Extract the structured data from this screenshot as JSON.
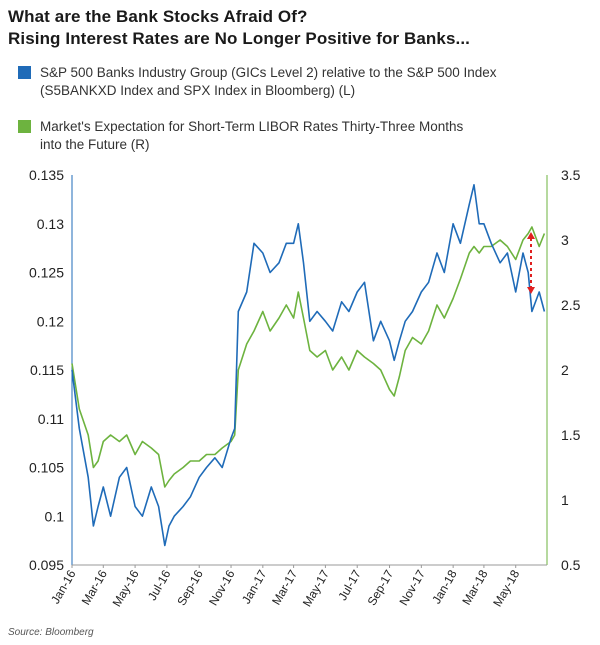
{
  "title_line1": "What are the Bank Stocks Afraid Of?",
  "title_line2": "Rising Interest Rates are No Longer Positive for Banks...",
  "source": "Source: Bloomberg",
  "colors": {
    "banks": "#1f6bb8",
    "libor": "#6db33f",
    "arrow": "#e02020"
  },
  "legend": [
    {
      "line1": "S&P 500 Banks Industry Group (GICs Level 2) relative to the S&P 500 Index",
      "line2": "(S5BANKXD Index and SPX Index in Bloomberg) (L)"
    },
    {
      "line1": "Market's Expectation for Short-Term LIBOR Rates Thirty-Three Months",
      "line2": "into the Future (R)"
    }
  ],
  "chart_data": {
    "type": "line",
    "x_ticks": [
      "Jan-16",
      "Mar-16",
      "May-16",
      "Jul-16",
      "Sep-16",
      "Nov-16",
      "Jan-17",
      "Mar-17",
      "May-17",
      "Jul-17",
      "Sep-17",
      "Nov-17",
      "Jan-18",
      "Mar-18",
      "May-18"
    ],
    "y_left": {
      "min": 0.095,
      "max": 0.135,
      "ticks": [
        "0.135",
        "0.13",
        "0.125",
        "0.12",
        "0.115",
        "0.11",
        "0.105",
        "0.1",
        "0.095"
      ]
    },
    "y_right": {
      "min": 0.5,
      "max": 3.5,
      "ticks": [
        "3.5",
        "3",
        "2.5",
        "2",
        "1.5",
        "1",
        "0.5"
      ]
    },
    "grid": false,
    "series": [
      {
        "name": "S&P 500 Banks Industry Group (GICs Level 2) relative to the S&P 500 Index (S5BANKXD Index and SPX Index in Bloomberg) (L)",
        "axis": "left",
        "x": [
          "2016-01-01",
          "2016-01-15",
          "2016-02-01",
          "2016-02-11",
          "2016-02-20",
          "2016-03-01",
          "2016-03-15",
          "2016-04-01",
          "2016-04-15",
          "2016-05-01",
          "2016-05-15",
          "2016-06-01",
          "2016-06-15",
          "2016-06-27",
          "2016-07-05",
          "2016-07-15",
          "2016-08-01",
          "2016-08-15",
          "2016-09-01",
          "2016-09-15",
          "2016-10-01",
          "2016-10-15",
          "2016-11-01",
          "2016-11-08",
          "2016-11-15",
          "2016-12-01",
          "2016-12-15",
          "2017-01-01",
          "2017-01-15",
          "2017-02-01",
          "2017-02-15",
          "2017-03-01",
          "2017-03-10",
          "2017-03-20",
          "2017-04-01",
          "2017-04-15",
          "2017-05-01",
          "2017-05-15",
          "2017-06-01",
          "2017-06-15",
          "2017-07-01",
          "2017-07-15",
          "2017-08-01",
          "2017-08-15",
          "2017-09-01",
          "2017-09-10",
          "2017-09-20",
          "2017-10-01",
          "2017-10-15",
          "2017-11-01",
          "2017-11-15",
          "2017-12-01",
          "2017-12-15",
          "2018-01-01",
          "2018-01-15",
          "2018-02-01",
          "2018-02-10",
          "2018-02-20",
          "2018-03-01",
          "2018-03-15",
          "2018-04-01",
          "2018-04-15",
          "2018-05-01",
          "2018-05-15",
          "2018-05-25",
          "2018-06-01",
          "2018-06-15",
          "2018-06-25"
        ],
        "y": [
          0.115,
          0.109,
          0.104,
          0.099,
          0.101,
          0.103,
          0.1,
          0.104,
          0.105,
          0.101,
          0.1,
          0.103,
          0.101,
          0.097,
          0.099,
          0.1,
          0.101,
          0.102,
          0.104,
          0.105,
          0.106,
          0.105,
          0.108,
          0.109,
          0.121,
          0.123,
          0.128,
          0.127,
          0.125,
          0.126,
          0.128,
          0.128,
          0.13,
          0.126,
          0.12,
          0.121,
          0.12,
          0.119,
          0.122,
          0.121,
          0.123,
          0.124,
          0.118,
          0.12,
          0.118,
          0.116,
          0.118,
          0.12,
          0.121,
          0.123,
          0.124,
          0.127,
          0.125,
          0.13,
          0.128,
          0.132,
          0.134,
          0.13,
          0.13,
          0.128,
          0.126,
          0.127,
          0.123,
          0.127,
          0.125,
          0.121,
          0.123,
          0.121
        ]
      },
      {
        "name": "Market's Expectation for Short-Term LIBOR Rates Thirty-Three Months into the Future (R)",
        "axis": "right",
        "x": [
          "2016-01-01",
          "2016-01-15",
          "2016-02-01",
          "2016-02-11",
          "2016-02-20",
          "2016-03-01",
          "2016-03-15",
          "2016-04-01",
          "2016-04-15",
          "2016-05-01",
          "2016-05-15",
          "2016-06-01",
          "2016-06-15",
          "2016-06-27",
          "2016-07-05",
          "2016-07-15",
          "2016-08-01",
          "2016-08-15",
          "2016-09-01",
          "2016-09-15",
          "2016-10-01",
          "2016-10-15",
          "2016-11-01",
          "2016-11-08",
          "2016-11-15",
          "2016-12-01",
          "2016-12-15",
          "2017-01-01",
          "2017-01-15",
          "2017-02-01",
          "2017-02-15",
          "2017-03-01",
          "2017-03-10",
          "2017-03-20",
          "2017-04-01",
          "2017-04-15",
          "2017-05-01",
          "2017-05-15",
          "2017-06-01",
          "2017-06-15",
          "2017-07-01",
          "2017-07-15",
          "2017-08-01",
          "2017-08-15",
          "2017-09-01",
          "2017-09-10",
          "2017-09-20",
          "2017-10-01",
          "2017-10-15",
          "2017-11-01",
          "2017-11-15",
          "2017-12-01",
          "2017-12-15",
          "2018-01-01",
          "2018-01-15",
          "2018-02-01",
          "2018-02-10",
          "2018-02-20",
          "2018-03-01",
          "2018-03-15",
          "2018-04-01",
          "2018-04-15",
          "2018-05-01",
          "2018-05-15",
          "2018-05-25",
          "2018-06-01",
          "2018-06-15",
          "2018-06-25"
        ],
        "y": [
          2.05,
          1.7,
          1.5,
          1.25,
          1.3,
          1.45,
          1.5,
          1.45,
          1.5,
          1.35,
          1.45,
          1.4,
          1.35,
          1.1,
          1.15,
          1.2,
          1.25,
          1.3,
          1.3,
          1.35,
          1.35,
          1.4,
          1.45,
          1.5,
          2.0,
          2.2,
          2.3,
          2.45,
          2.3,
          2.4,
          2.5,
          2.4,
          2.6,
          2.4,
          2.15,
          2.1,
          2.15,
          2.0,
          2.1,
          2.0,
          2.15,
          2.1,
          2.05,
          2.0,
          1.85,
          1.8,
          1.95,
          2.15,
          2.25,
          2.2,
          2.3,
          2.5,
          2.4,
          2.55,
          2.7,
          2.9,
          2.95,
          2.9,
          2.95,
          2.95,
          3.0,
          2.95,
          2.85,
          3.0,
          3.05,
          3.1,
          2.95,
          3.05
        ]
      }
    ]
  }
}
